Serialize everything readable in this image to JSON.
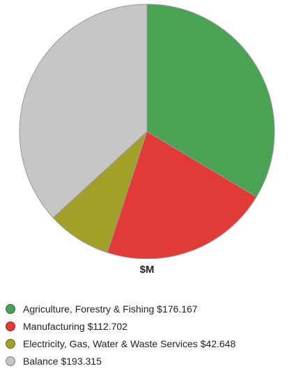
{
  "chart_data": {
    "type": "pie",
    "title": "$M",
    "slices": [
      {
        "name": "Agriculture, Forestry & Fishing",
        "value": 176.167,
        "color": "#4aa354",
        "legend": "Agriculture, Forestry & Fishing $176.167"
      },
      {
        "name": "Manufacturing",
        "value": 112.702,
        "color": "#e23a36",
        "legend": "Manufacturing $112.702"
      },
      {
        "name": "Electricity, Gas, Water & Waste Services",
        "value": 42.648,
        "color": "#a3a02a",
        "legend": "Electricity, Gas, Water & Waste Services $42.648"
      },
      {
        "name": "Balance",
        "value": 193.315,
        "color": "#c6c6c6",
        "legend": "Balance $193.315"
      }
    ],
    "legend_position": "bottom"
  }
}
